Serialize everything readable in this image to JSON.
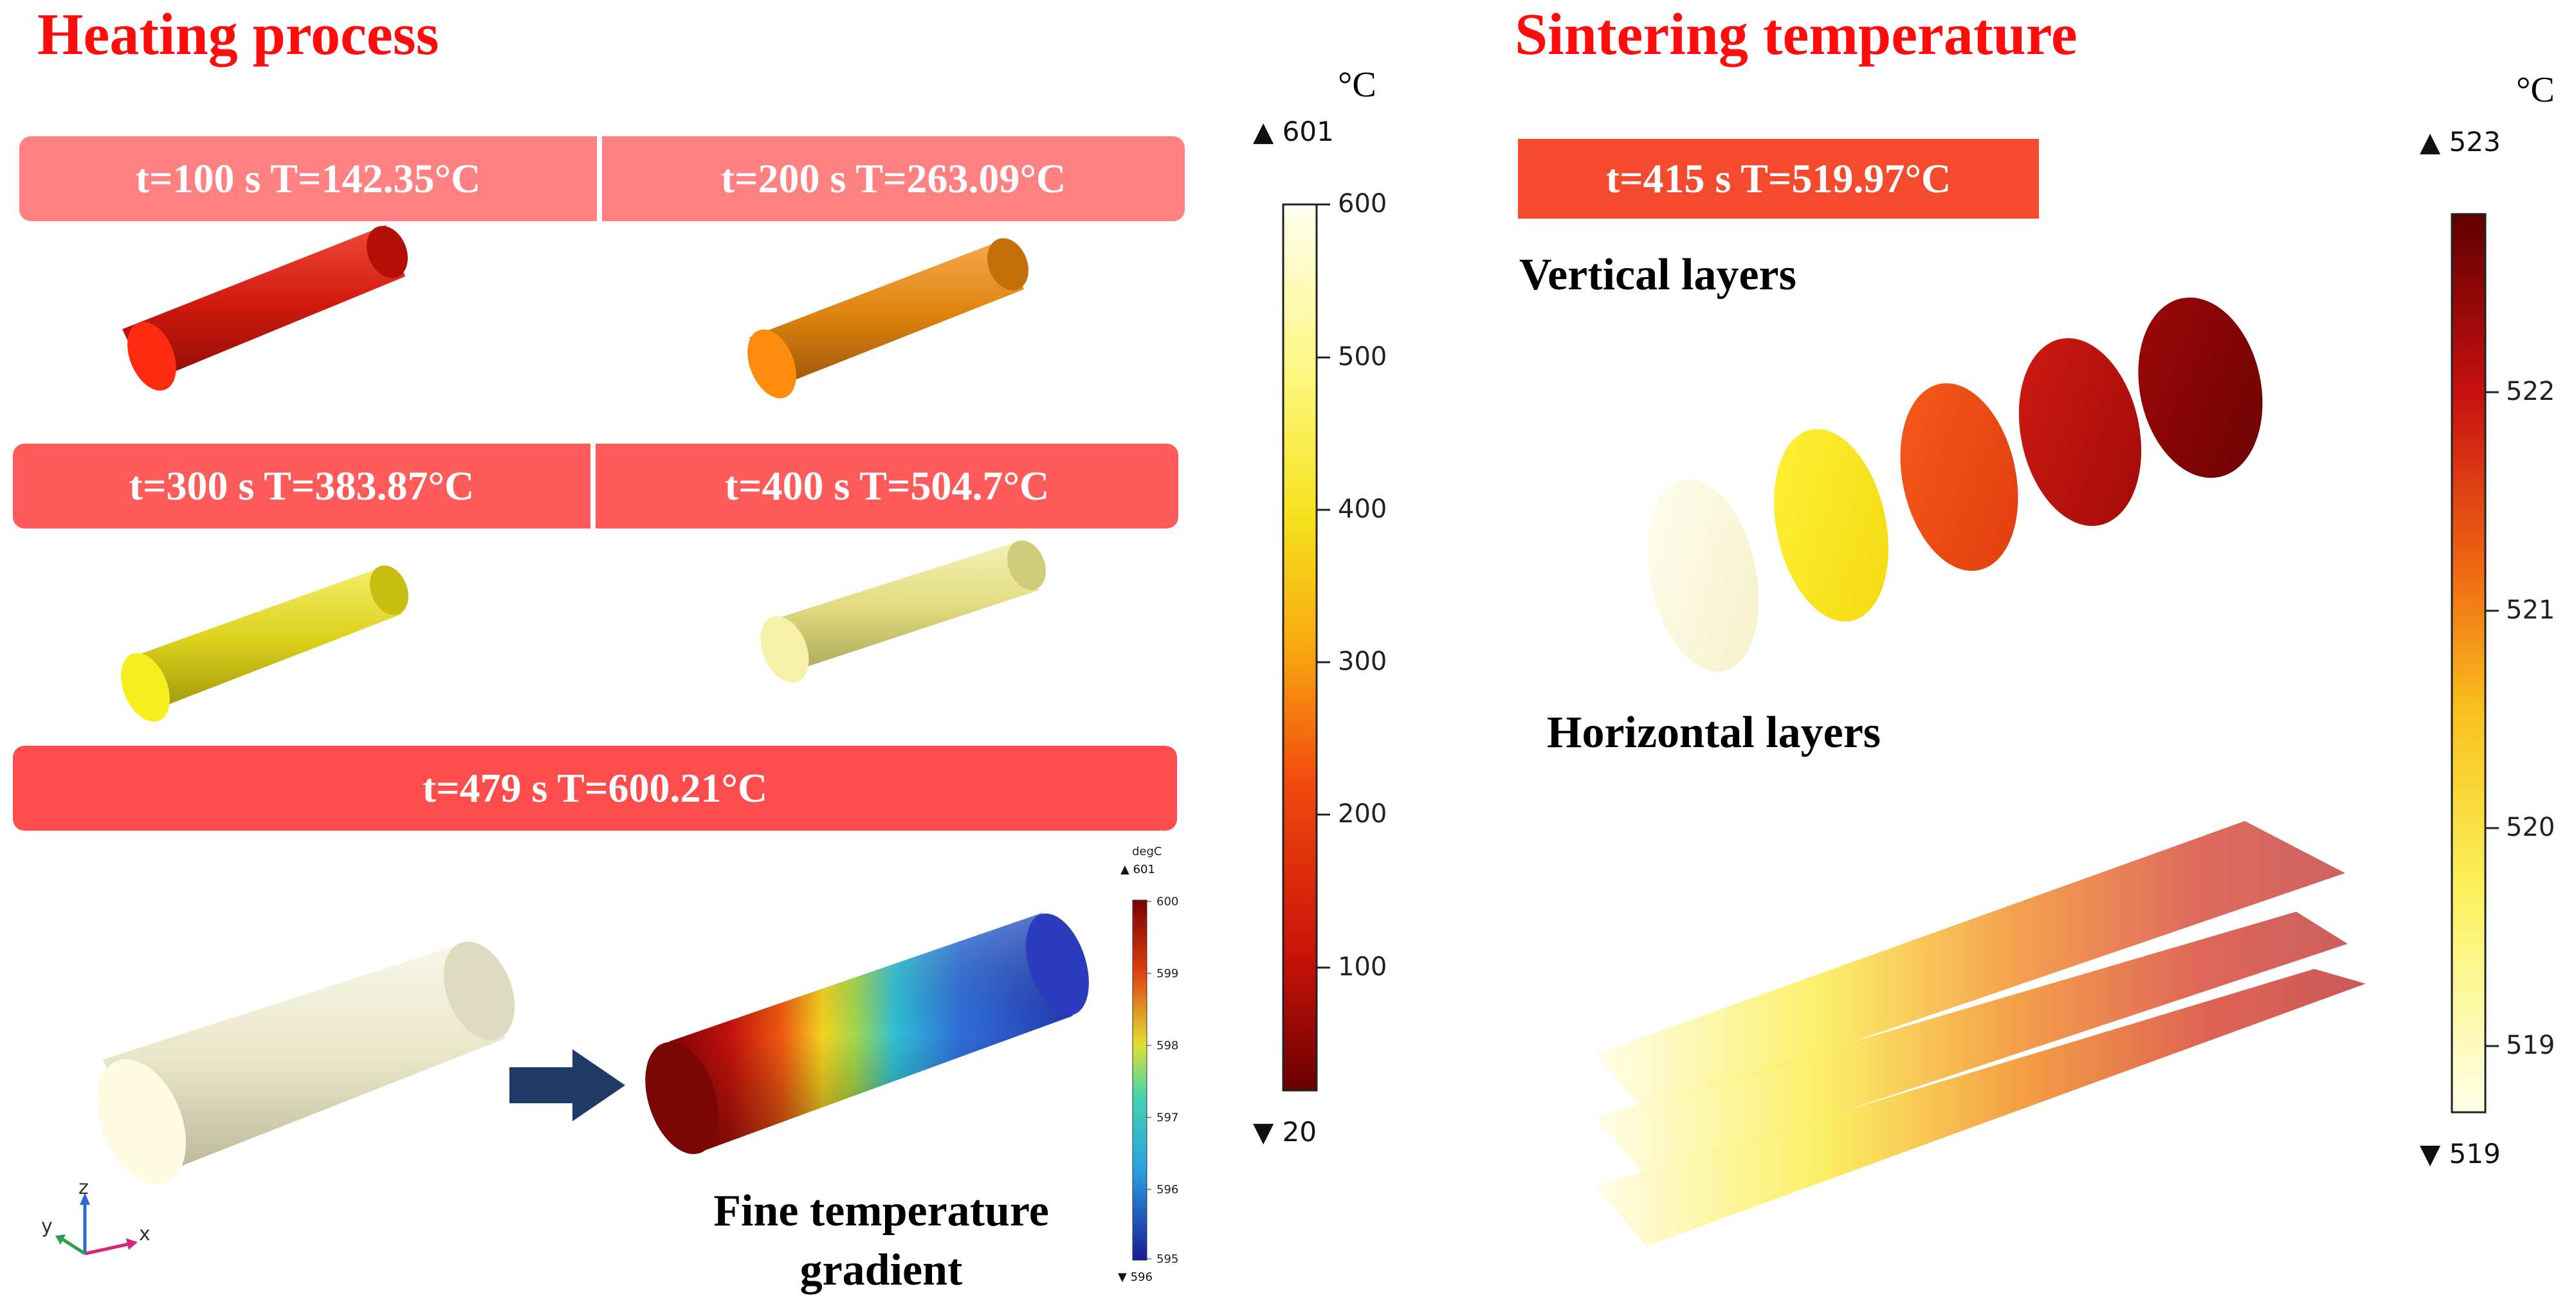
{
  "heating": {
    "title": "Heating process",
    "boxes": [
      {
        "label": "t=100 s T=142.35°C",
        "color": "#e41a0e"
      },
      {
        "label": "t=200 s T=263.09°C",
        "color": "#ec8a10"
      },
      {
        "label": "t=300 s T=383.87°C",
        "color": "#e8df1a"
      },
      {
        "label": "t=400 s T=504.7°C",
        "color": "#ece47f"
      },
      {
        "label": "t=479 s T=600.21°C",
        "color": "#f1efd2"
      }
    ],
    "gradient_caption_line1": "Fine temperature",
    "gradient_caption_line2": "gradient",
    "colorbar": {
      "unit": "°C",
      "max_label": "601",
      "min_label": "20",
      "ticks": [
        "600",
        "500",
        "400",
        "300",
        "200",
        "100"
      ],
      "max_marker": "▲",
      "min_marker": "▼"
    },
    "small_colorbar": {
      "unit": "degC",
      "max_label": "601",
      "min_label": "596",
      "ticks": [
        "600",
        "599",
        "598",
        "597",
        "596",
        "595"
      ]
    },
    "axes": {
      "z": "z",
      "y": "y",
      "x": "x"
    }
  },
  "sintering": {
    "title": "Sintering temperature",
    "box": "t=415 s T=519.97°C",
    "vertical_label": "Vertical layers",
    "horizontal_label": "Horizontal layers",
    "colorbar": {
      "unit": "°C",
      "max_label": "523",
      "min_label": "519",
      "ticks": [
        "522",
        "521",
        "520",
        "519"
      ]
    }
  },
  "colors": {
    "title_red": "#ff0d0d",
    "arrow": "#1f3a66"
  }
}
